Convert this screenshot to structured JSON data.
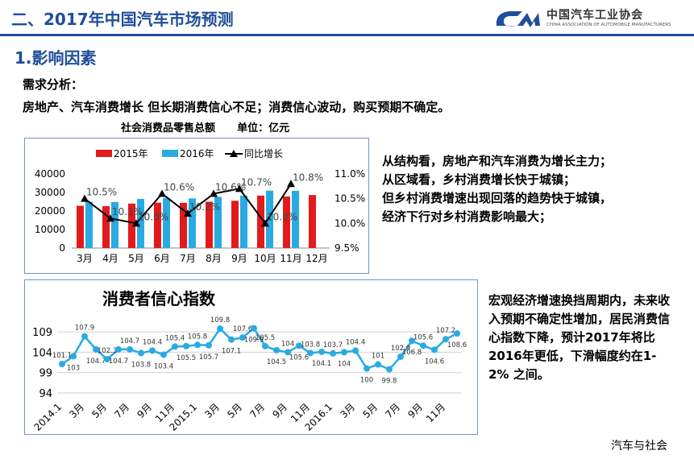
{
  "header": {
    "title": "二、2017年中国汽车市场预测",
    "logo_text": "中国汽车工业协会",
    "logo_sub": "CHINA ASSOCIATION OF AUTOMOBILE MANUFACTURERS"
  },
  "section": {
    "title": "1.影响因素"
  },
  "demand_label": "需求分析：",
  "main_statement": "房地产、汽车消费增长  但长期消费信心不足；消费信心波动，购买预期不确定。",
  "chart1_caption": "社会消费品零售总额      单位：亿元",
  "right_text_1": [
    "从结构看，房地产和汽车消费为增长主力；",
    "从区域看，乡村消费增长快于城镇；",
    "但乡村消费增速出现回落的趋势快于城镇，",
    "经济下行对乡村消费影响最大；"
  ],
  "right_text_2": "宏观经济增速换挡周期内，未来收入预期不确定性增加，居民消费信心指数下降，预计2017年将比2016年更低，下滑幅度约在1-2% 之间。",
  "footer": "汽车与社会",
  "colors": {
    "series_2015": "#e31a1c",
    "series_2016": "#29abe2",
    "growth_line": "#000000",
    "confidence_line": "#29abe2"
  },
  "chart_data": [
    {
      "type": "bar",
      "categories": [
        "3月",
        "4月",
        "5月",
        "6月",
        "7月",
        "8月",
        "9月",
        "10月",
        "11月",
        "12月"
      ],
      "series": [
        {
          "name": "2015年",
          "values": [
            22800,
            22600,
            24000,
            24500,
            24400,
            25000,
            25500,
            28300,
            27800,
            28600
          ]
        },
        {
          "name": "2016年",
          "values": [
            25000,
            24800,
            26500,
            27000,
            26800,
            27600,
            28300,
            31000,
            30900,
            null
          ]
        },
        {
          "name": "同比增长",
          "axis": "right",
          "values": [
            10.5,
            10.1,
            10.0,
            10.6,
            10.2,
            10.6,
            10.7,
            10.0,
            10.8,
            null
          ],
          "labels": [
            "10.5%",
            "10.1%",
            "10.0%",
            "10.6%",
            "10.2%",
            "10.6%",
            "10.7%",
            "10.0%",
            "10.8%",
            ""
          ]
        }
      ],
      "ylim": [
        0,
        40000
      ],
      "yticks": [
        "0",
        "10000",
        "20000",
        "30000",
        "40000"
      ],
      "y2lim": [
        9.5,
        11.0
      ],
      "y2ticks": [
        "9.5%",
        "10.0%",
        "10.5%",
        "11.0%"
      ],
      "legend_position": "top-left"
    },
    {
      "type": "line",
      "title": "消费者信心指数",
      "xticks": [
        "2014.1",
        "3月",
        "5月",
        "7月",
        "9月",
        "11月",
        "2015.1",
        "3月",
        "5月",
        "7月",
        "9月",
        "11月",
        "2016.1",
        "3月",
        "5月",
        "7月",
        "9月",
        "11月"
      ],
      "values": [
        101.1,
        103,
        107.9,
        104.7,
        102.3,
        104.7,
        104.7,
        103.8,
        104.4,
        103.4,
        105.4,
        105.5,
        105.8,
        105.7,
        109.8,
        107.1,
        107.6,
        109.9,
        105.5,
        104.5,
        104,
        105.6,
        103.8,
        104.1,
        103.7,
        104,
        104.4,
        100,
        101,
        99.8,
        102.9,
        106.8,
        105.6,
        104.6,
        107.2,
        108.6
      ],
      "labels": [
        "101.1",
        "103",
        "107.9",
        "104.7",
        "102.3",
        "104.7",
        "104.7",
        "103.8",
        "104.4",
        "103.4",
        "105.4",
        "105.5",
        "105.8",
        "105.7",
        "109.8",
        "107.1",
        "107.6",
        "109.9",
        "105.5",
        "104.5",
        "104",
        "105.6",
        "103.8",
        "104.1",
        "103.7",
        "104",
        "104.4",
        "100",
        "101",
        "99.8",
        "102.9",
        "106.8",
        "105.6",
        "104.6",
        "107.2",
        "108.6"
      ],
      "ylim": [
        94,
        111
      ],
      "yticks": [
        "94",
        "99",
        "104",
        "109"
      ],
      "grid": true
    }
  ]
}
